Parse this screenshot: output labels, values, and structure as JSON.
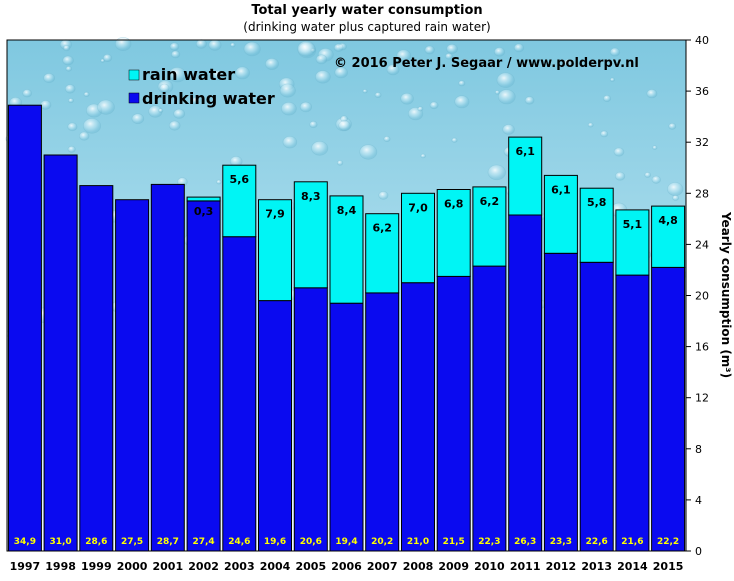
{
  "chart_data": {
    "type": "bar",
    "stacked": true,
    "title": "Total yearly water consumption",
    "subtitle": "(drinking  water plus captured rain  water)",
    "copyright": "© 2016  Peter  J.  Segaar  /  www.polderpv.nl",
    "ylabel": "Yearly consumption (m³)",
    "ylim": [
      0,
      40
    ],
    "yticks": [
      0,
      4,
      8,
      12,
      16,
      20,
      24,
      28,
      32,
      36,
      40
    ],
    "grid": false,
    "legend_position": "top-left",
    "categories": [
      "1997",
      "1998",
      "1999",
      "2000",
      "2001",
      "2002",
      "2003",
      "2004",
      "2005",
      "2006",
      "2007",
      "2008",
      "2009",
      "2010",
      "2011",
      "2012",
      "2013",
      "2014",
      "2015"
    ],
    "series": [
      {
        "name": "drinking water",
        "color": "#0a0af0",
        "values": [
          34.9,
          31.0,
          28.6,
          27.5,
          28.7,
          27.4,
          24.6,
          19.6,
          20.6,
          19.4,
          20.2,
          21.0,
          21.5,
          22.3,
          26.3,
          23.3,
          22.6,
          21.6,
          22.2
        ],
        "labels": [
          "34,9",
          "31,0",
          "28,6",
          "27,5",
          "28,7",
          "27,4",
          "24,6",
          "19,6",
          "20,6",
          "19,4",
          "20,2",
          "21,0",
          "21,5",
          "22,3",
          "26,3",
          "23,3",
          "22,6",
          "21,6",
          "22,2"
        ]
      },
      {
        "name": "rain water",
        "color": "#00f5f5",
        "values": [
          null,
          null,
          null,
          null,
          null,
          0.3,
          5.6,
          7.9,
          8.3,
          8.4,
          6.2,
          7.0,
          6.8,
          6.2,
          6.1,
          6.1,
          5.8,
          5.1,
          4.8
        ],
        "labels": [
          "",
          "",
          "",
          "",
          "",
          "0,3",
          "5,6",
          "7,9",
          "8,3",
          "8,4",
          "6,2",
          "7,0",
          "6,8",
          "6,2",
          "6,1",
          "6,1",
          "5,8",
          "5,1",
          "4,8"
        ]
      }
    ]
  }
}
